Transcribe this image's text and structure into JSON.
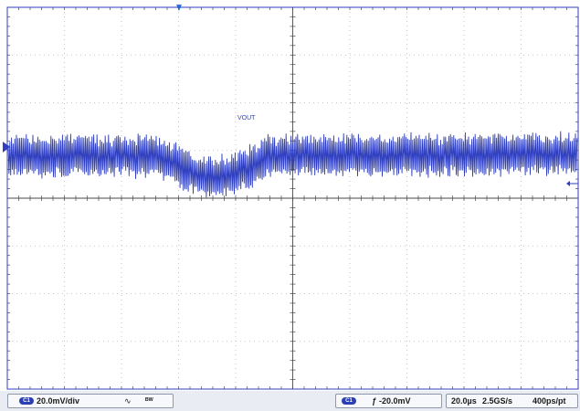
{
  "waveform": {
    "label": "VOUT",
    "color": "#2f3fbf"
  },
  "status": {
    "channel": {
      "badge": "C1",
      "scale": "20.0mV/div",
      "icon_bw": "bandwidth-limit-icon",
      "icon_bw_glyph": "␁",
      "coupling_icon": "coupling-icon",
      "coupling_glyph": "ᴮᵂ"
    },
    "trigger": {
      "badge": "C1",
      "slope_glyph": "ƒ",
      "level": "-20.0mV"
    },
    "timebase": {
      "time_div": "20.0µs",
      "sample_rate": "2.5GS/s",
      "resolution": "400ps/pt"
    }
  },
  "colors": {
    "grid": "#b9b9b9",
    "axis": "#4a4a4a",
    "frame": "#2f3fbf",
    "trace": "#2f3fbf"
  }
}
